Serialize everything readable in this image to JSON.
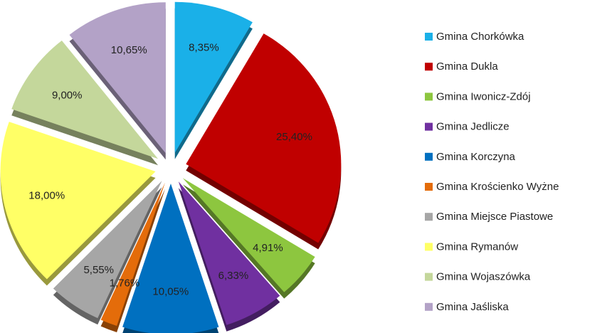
{
  "chart_data": {
    "type": "pie",
    "categories": [
      "Gmina Chorkówka",
      "Gmina Dukla",
      "Gmina Iwonicz-Zdój",
      "Gmina Jedlicze",
      "Gmina Korczyna",
      "Gmina Krościenko Wyżne",
      "Gmina Miejsce Piastowe",
      "Gmina Rymanów",
      "Gmina Wojaszówka",
      "Gmina Jaśliska"
    ],
    "values": [
      8.35,
      25.4,
      4.91,
      6.33,
      10.05,
      1.76,
      5.55,
      18.0,
      9.0,
      10.65
    ],
    "value_labels": [
      "8,35%",
      "25,40%",
      "4,91%",
      "6,33%",
      "10,05%",
      "1,76%",
      "5,55%",
      "18,00%",
      "9,00%",
      "10,65%"
    ],
    "colors": [
      "#1ab0e8",
      "#c00000",
      "#8dc63f",
      "#7030a0",
      "#0070c0",
      "#e46c0a",
      "#a6a6a6",
      "#ffff66",
      "#c4d79b",
      "#b3a2c7"
    ],
    "legend": "right"
  }
}
